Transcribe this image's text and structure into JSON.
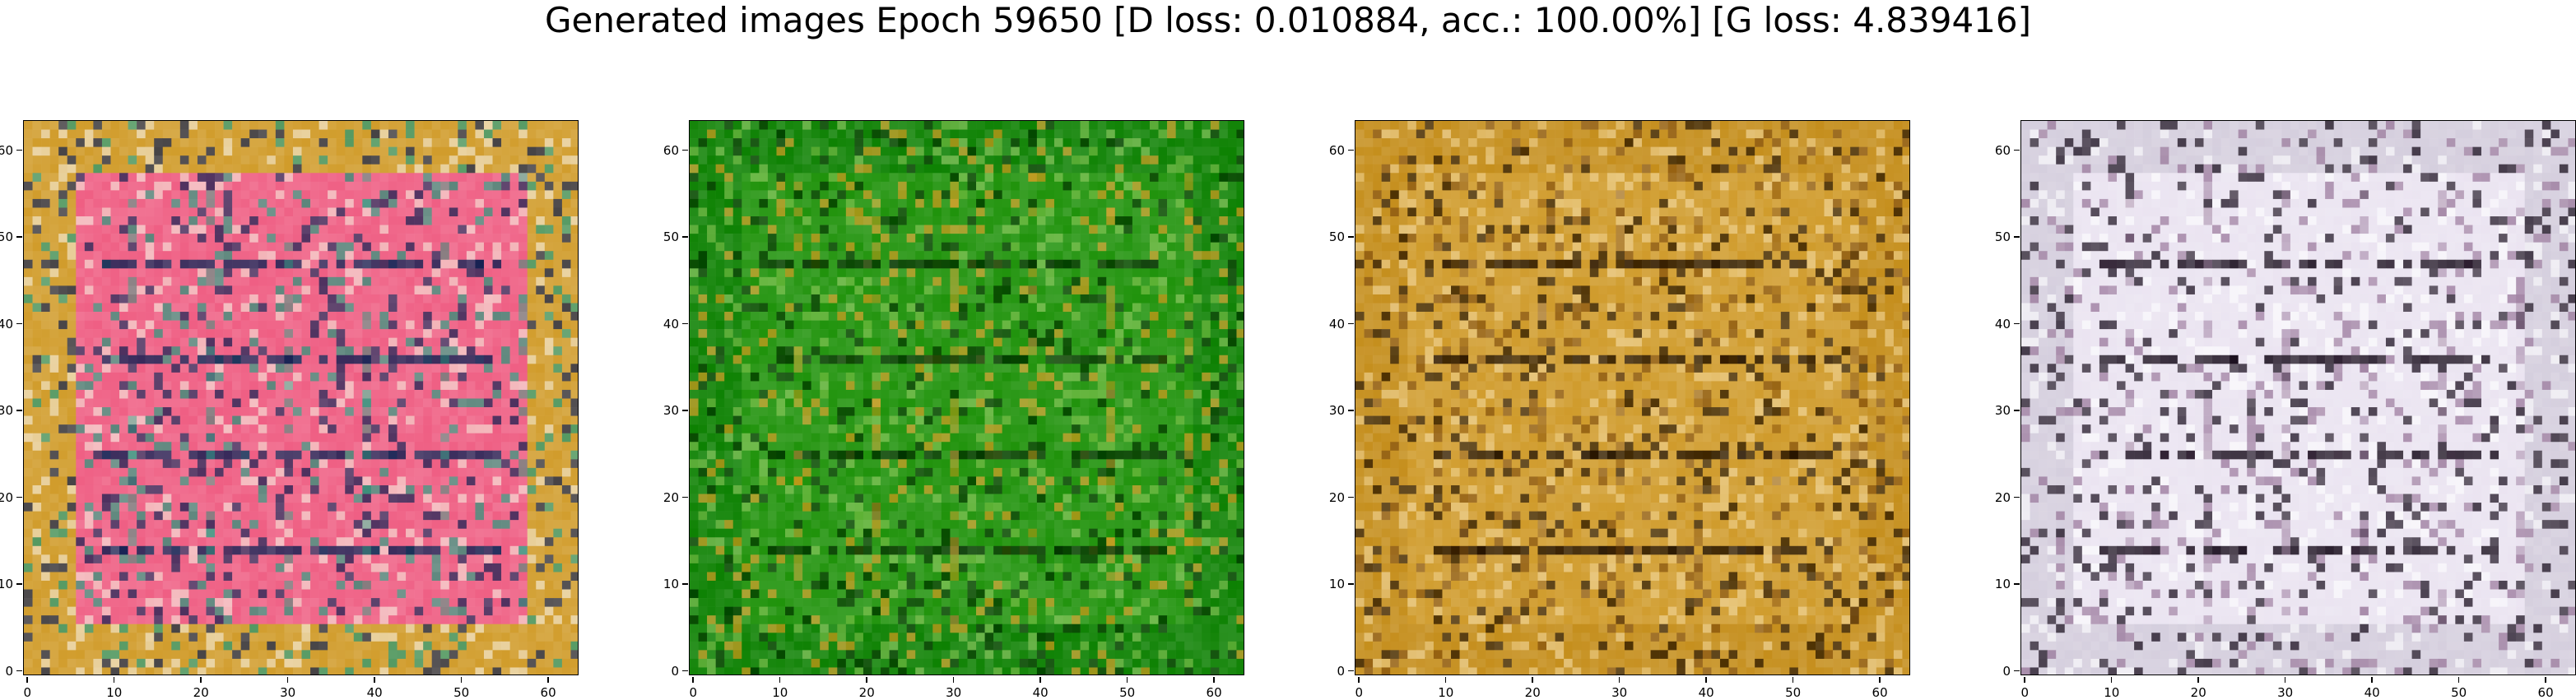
{
  "figure": {
    "title": "Generated images Epoch 59650 [D loss: 0.010884, acc.: 100.00%] [G loss: 4.839416]"
  },
  "axes": {
    "x_ticks": [
      "0",
      "10",
      "20",
      "30",
      "40",
      "50",
      "60"
    ],
    "y_ticks": [
      "0",
      "10",
      "20",
      "30",
      "40",
      "50",
      "60"
    ],
    "xlim": [
      -0.5,
      63.5
    ],
    "ylim": [
      63.5,
      -0.5
    ]
  },
  "panels": [
    {
      "name": "generated-image-1",
      "palette": {
        "base": "#d4a33a",
        "inner": "#f06a8c",
        "accent": "#2e9e82",
        "dark": "#1b2d5c",
        "light": "#f7efe0"
      }
    },
    {
      "name": "generated-image-2",
      "palette": {
        "base": "#1e8a14",
        "inner": "#2f9a1c",
        "accent": "#d9a02a",
        "dark": "#0d3b09",
        "light": "#8cc85a"
      }
    },
    {
      "name": "generated-image-3",
      "palette": {
        "base": "#c9962c",
        "inner": "#d3a23a",
        "accent": "#8a5a1c",
        "dark": "#2a1a08",
        "light": "#f2d79a"
      }
    },
    {
      "name": "generated-image-4",
      "palette": {
        "base": "#d8d2e0",
        "inner": "#ece6f2",
        "accent": "#9a7a9c",
        "dark": "#1a0f1e",
        "light": "#ffffff"
      }
    }
  ]
}
